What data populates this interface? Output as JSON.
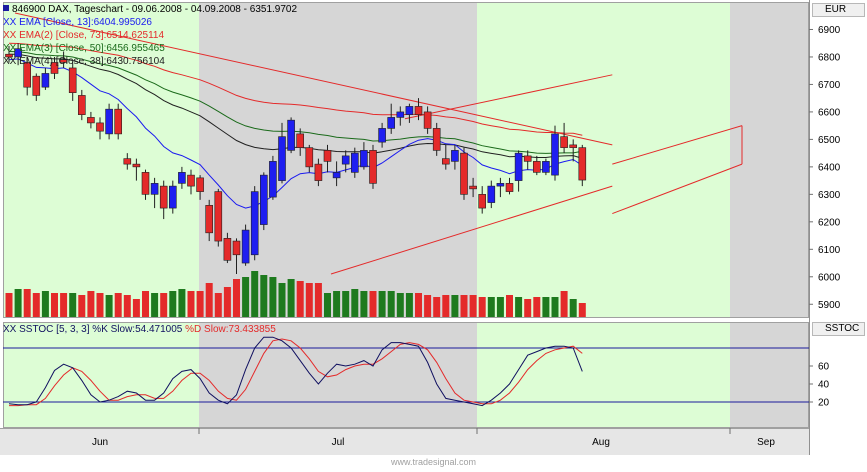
{
  "header": {
    "symbol_label": "846900 DAX, Tageschart - 09.06.2008 - 04.09.2008 - 6351.9702",
    "ema1": "XX EMA [Close, 13]:6404.995026",
    "ema2": "XX EMA(2) [Close, 73]:6514.625114",
    "ema3": "XX EMA(3) [Close, 50]:6456.955465",
    "ema4": "XX EMA(4) [Close, 38]:6430.756104",
    "sstoc": "XX SSTOC [5, 3, 3] %K Slow:54.471005",
    "sstoc_d": "%D Slow:73.433855"
  },
  "axis_tags": {
    "price": "EUR",
    "oscillator": "SSTOC"
  },
  "footer": "www.tradesignal.com",
  "colors": {
    "green_bg": "#ddfdd5",
    "gray_bg": "#d6d6d6",
    "up_candle": "#1e1ef0",
    "down_candle": "#e42a2a",
    "up_volume": "#1e7a1e",
    "down_volume": "#e42a2a",
    "ema13": "#1a1af0",
    "ema73": "#e42a2a",
    "ema50": "#1a6a1a",
    "ema38": "#202020",
    "trend_line": "#e42a2a",
    "k_slow": "#101060",
    "d_slow": "#e42a2a",
    "level_line": "#1a1a9a"
  },
  "chart_data": [
    {
      "type": "candlestick",
      "title": "846900 DAX, Tageschart - 09.06.2008 - 04.09.2008 - 6351.9702",
      "x": [
        "2008-06-09",
        "2008-06-10",
        "2008-06-11",
        "2008-06-12",
        "2008-06-13",
        "2008-06-16",
        "2008-06-17",
        "2008-06-18",
        "2008-06-19",
        "2008-06-20",
        "2008-06-23",
        "2008-06-24",
        "2008-06-25",
        "2008-06-26",
        "2008-06-27",
        "2008-06-30",
        "2008-07-01",
        "2008-07-02",
        "2008-07-03",
        "2008-07-04",
        "2008-07-07",
        "2008-07-08",
        "2008-07-09",
        "2008-07-10",
        "2008-07-11",
        "2008-07-14",
        "2008-07-15",
        "2008-07-16",
        "2008-07-17",
        "2008-07-18",
        "2008-07-21",
        "2008-07-22",
        "2008-07-23",
        "2008-07-24",
        "2008-07-25",
        "2008-07-28",
        "2008-07-29",
        "2008-07-30",
        "2008-07-31",
        "2008-08-01",
        "2008-08-04",
        "2008-08-05",
        "2008-08-06",
        "2008-08-07",
        "2008-08-08",
        "2008-08-11",
        "2008-08-12",
        "2008-08-13",
        "2008-08-14",
        "2008-08-15",
        "2008-08-18",
        "2008-08-19",
        "2008-08-20",
        "2008-08-21",
        "2008-08-22",
        "2008-08-25",
        "2008-08-26",
        "2008-08-27",
        "2008-08-28",
        "2008-08-29",
        "2008-09-01",
        "2008-09-02",
        "2008-09-03",
        "2008-09-04"
      ],
      "open": [
        6810,
        6800,
        6780,
        6730,
        6690,
        6780,
        6790,
        6760,
        6660,
        6580,
        6560,
        6520,
        6610,
        6430,
        6410,
        6380,
        6300,
        6330,
        6250,
        6340,
        6370,
        6360,
        6260,
        6310,
        6140,
        6130,
        6050,
        6080,
        6190,
        6290,
        6350,
        6460,
        6520,
        6470,
        6410,
        6460,
        6360,
        6410,
        6380,
        6400,
        6460,
        6490,
        6540,
        6580,
        6590,
        6620,
        6600,
        6540,
        6430,
        6420,
        6450,
        6330,
        6300,
        6270,
        6330,
        6340,
        6350,
        6440,
        6420,
        6380,
        6370,
        6510,
        6480,
        6470
      ],
      "close": [
        6800,
        6830,
        6690,
        6660,
        6740,
        6740,
        6780,
        6670,
        6590,
        6560,
        6530,
        6610,
        6520,
        6410,
        6400,
        6300,
        6340,
        6250,
        6330,
        6380,
        6330,
        6310,
        6160,
        6130,
        6060,
        6080,
        6170,
        6310,
        6370,
        6420,
        6510,
        6570,
        6470,
        6400,
        6350,
        6420,
        6380,
        6440,
        6450,
        6460,
        6340,
        6540,
        6580,
        6600,
        6620,
        6590,
        6540,
        6460,
        6410,
        6460,
        6300,
        6320,
        6250,
        6330,
        6340,
        6310,
        6450,
        6420,
        6380,
        6420,
        6520,
        6470,
        6470,
        6352
      ],
      "high": [
        6840,
        6850,
        6800,
        6740,
        6760,
        6800,
        6820,
        6780,
        6680,
        6600,
        6580,
        6630,
        6630,
        6450,
        6430,
        6390,
        6360,
        6350,
        6350,
        6400,
        6390,
        6370,
        6280,
        6320,
        6160,
        6140,
        6190,
        6330,
        6380,
        6440,
        6560,
        6580,
        6540,
        6480,
        6430,
        6480,
        6420,
        6460,
        6470,
        6490,
        6480,
        6560,
        6630,
        6620,
        6630,
        6650,
        6620,
        6560,
        6480,
        6480,
        6470,
        6360,
        6330,
        6350,
        6360,
        6360,
        6460,
        6460,
        6440,
        6430,
        6550,
        6560,
        6500,
        6480
      ],
      "low": [
        6780,
        6770,
        6660,
        6640,
        6680,
        6720,
        6760,
        6640,
        6570,
        6540,
        6500,
        6500,
        6500,
        6390,
        6350,
        6280,
        6250,
        6210,
        6230,
        6320,
        6300,
        6280,
        6130,
        6110,
        6050,
        6010,
        6040,
        6060,
        6170,
        6280,
        6340,
        6450,
        6440,
        6380,
        6330,
        6380,
        6330,
        6380,
        6360,
        6390,
        6320,
        6470,
        6520,
        6550,
        6560,
        6570,
        6520,
        6440,
        6390,
        6390,
        6280,
        6290,
        6230,
        6250,
        6290,
        6300,
        6310,
        6390,
        6370,
        6370,
        6350,
        6450,
        6420,
        6330
      ],
      "volume": [
        5,
        5,
        5,
        5,
        5,
        5,
        5,
        5,
        5,
        5,
        4,
        4,
        4,
        4,
        4,
        4,
        4,
        4,
        4,
        4,
        4,
        4,
        4,
        4,
        5,
        5,
        5,
        5,
        5,
        5,
        5,
        5,
        5,
        5,
        5,
        4,
        4,
        4,
        4,
        4,
        4,
        4,
        4,
        4,
        4,
        4,
        4,
        4,
        4,
        4,
        4,
        4,
        4,
        4,
        4,
        4,
        4,
        4,
        4,
        4,
        4,
        4,
        4,
        4
      ],
      "volume_heights": [
        24,
        28,
        28,
        24,
        26,
        24,
        24,
        24,
        22,
        26,
        24,
        22,
        24,
        22,
        18,
        26,
        24,
        24,
        26,
        28,
        26,
        26,
        34,
        24,
        30,
        38,
        40,
        46,
        42,
        40,
        34,
        38,
        36,
        34,
        34,
        24,
        26,
        26,
        28,
        26,
        26,
        26,
        26,
        24,
        24,
        24,
        22,
        20,
        22,
        22,
        22,
        22,
        20,
        20,
        20,
        22,
        20,
        18,
        20,
        20,
        20,
        26,
        18,
        14
      ],
      "volume_up": [
        false,
        true,
        false,
        false,
        true,
        false,
        false,
        true,
        false,
        false,
        false,
        true,
        false,
        false,
        false,
        false,
        true,
        false,
        true,
        true,
        false,
        false,
        false,
        false,
        false,
        false,
        true,
        true,
        true,
        true,
        true,
        true,
        false,
        false,
        false,
        true,
        true,
        true,
        true,
        true,
        false,
        true,
        true,
        true,
        true,
        false,
        false,
        false,
        false,
        true,
        false,
        false,
        false,
        true,
        true,
        false,
        true,
        false,
        false,
        true,
        true,
        false,
        true,
        false
      ],
      "ema13": [
        6790,
        6793,
        6778,
        6762,
        6760,
        6757,
        6760,
        6746,
        6725,
        6701,
        6677,
        6666,
        6645,
        6612,
        6582,
        6541,
        6512,
        6474,
        6451,
        6441,
        6425,
        6408,
        6370,
        6334,
        6295,
        6263,
        6250,
        6258,
        6274,
        6294,
        6325,
        6357,
        6375,
        6379,
        6375,
        6382,
        6380,
        6389,
        6398,
        6407,
        6397,
        6414,
        6437,
        6460,
        6482,
        6497,
        6503,
        6497,
        6484,
        6481,
        6454,
        6434,
        6407,
        6396,
        6387,
        6375,
        6386,
        6390,
        6388,
        6392,
        6410,
        6419,
        6427,
        6405
      ],
      "ema38": [
        6810,
        6810,
        6804,
        6797,
        6795,
        6793,
        6793,
        6787,
        6777,
        6766,
        6755,
        6748,
        6736,
        6719,
        6703,
        6681,
        6663,
        6641,
        6625,
        6614,
        6600,
        6586,
        6564,
        6541,
        6518,
        6496,
        6481,
        6471,
        6466,
        6463,
        6466,
        6471,
        6471,
        6468,
        6462,
        6460,
        6456,
        6455,
        6455,
        6455,
        6450,
        6455,
        6461,
        6468,
        6476,
        6482,
        6485,
        6484,
        6481,
        6480,
        6472,
        6465,
        6455,
        6449,
        6444,
        6437,
        6438,
        6437,
        6434,
        6434,
        6438,
        6440,
        6441,
        6431
      ],
      "ema50": [
        6820,
        6819,
        6815,
        6809,
        6807,
        6805,
        6804,
        6800,
        6792,
        6783,
        6775,
        6769,
        6760,
        6747,
        6734,
        6717,
        6703,
        6685,
        6672,
        6662,
        6651,
        6639,
        6621,
        6602,
        6582,
        6563,
        6549,
        6540,
        6534,
        6530,
        6529,
        6530,
        6528,
        6524,
        6518,
        6514,
        6508,
        6505,
        6502,
        6500,
        6494,
        6495,
        6498,
        6501,
        6506,
        6509,
        6510,
        6508,
        6504,
        6502,
        6494,
        6487,
        6477,
        6471,
        6465,
        6458,
        6457,
        6454,
        6450,
        6449,
        6450,
        6451,
        6451,
        6457
      ],
      "ema73": [
        6850,
        6849,
        6846,
        6842,
        6841,
        6839,
        6838,
        6835,
        6829,
        6823,
        6817,
        6812,
        6806,
        6797,
        6788,
        6776,
        6766,
        6753,
        6743,
        6735,
        6726,
        6717,
        6704,
        6690,
        6675,
        6660,
        6649,
        6641,
        6635,
        6631,
        6629,
        6628,
        6625,
        6621,
        6616,
        6612,
        6607,
        6603,
        6600,
        6597,
        6591,
        6590,
        6590,
        6590,
        6591,
        6591,
        6590,
        6587,
        6582,
        6579,
        6572,
        6565,
        6556,
        6550,
        6544,
        6537,
        6535,
        6531,
        6527,
        6525,
        6525,
        6523,
        6522,
        6515
      ],
      "ylim": [
        5850,
        7000
      ],
      "yticks": [
        5900,
        6000,
        6100,
        6200,
        6300,
        6400,
        6500,
        6600,
        6700,
        6800,
        6900
      ],
      "xlabels": [
        "Jun",
        "Jul",
        "Aug",
        "Sep"
      ]
    },
    {
      "type": "line",
      "title": "XX SSTOC [5, 3, 3] %K Slow:54.471005 %D Slow:73.433855",
      "series": [
        {
          "name": "%K Slow",
          "values": [
            18,
            17,
            17,
            20,
            36,
            55,
            62,
            58,
            44,
            28,
            20,
            22,
            26,
            32,
            30,
            22,
            22,
            30,
            46,
            54,
            56,
            46,
            30,
            22,
            18,
            28,
            56,
            80,
            92,
            92,
            88,
            80,
            66,
            52,
            40,
            52,
            62,
            60,
            62,
            66,
            60,
            78,
            86,
            86,
            84,
            82,
            64,
            40,
            24,
            22,
            20,
            18,
            16,
            22,
            30,
            40,
            56,
            72,
            76,
            80,
            82,
            82,
            80,
            54
          ]
        },
        {
          "name": "%D Slow",
          "values": [
            16,
            16,
            17,
            17,
            24,
            38,
            50,
            58,
            54,
            44,
            32,
            22,
            22,
            26,
            28,
            28,
            24,
            24,
            32,
            44,
            52,
            52,
            44,
            32,
            24,
            22,
            34,
            54,
            74,
            88,
            90,
            88,
            80,
            68,
            54,
            48,
            50,
            56,
            60,
            62,
            62,
            68,
            76,
            84,
            86,
            84,
            78,
            64,
            46,
            30,
            22,
            20,
            18,
            18,
            22,
            30,
            42,
            56,
            66,
            74,
            78,
            80,
            82,
            74
          ]
        }
      ],
      "ylim": [
        0,
        100
      ],
      "yticks": [
        20,
        40,
        60
      ],
      "levels": [
        20,
        80
      ]
    }
  ]
}
